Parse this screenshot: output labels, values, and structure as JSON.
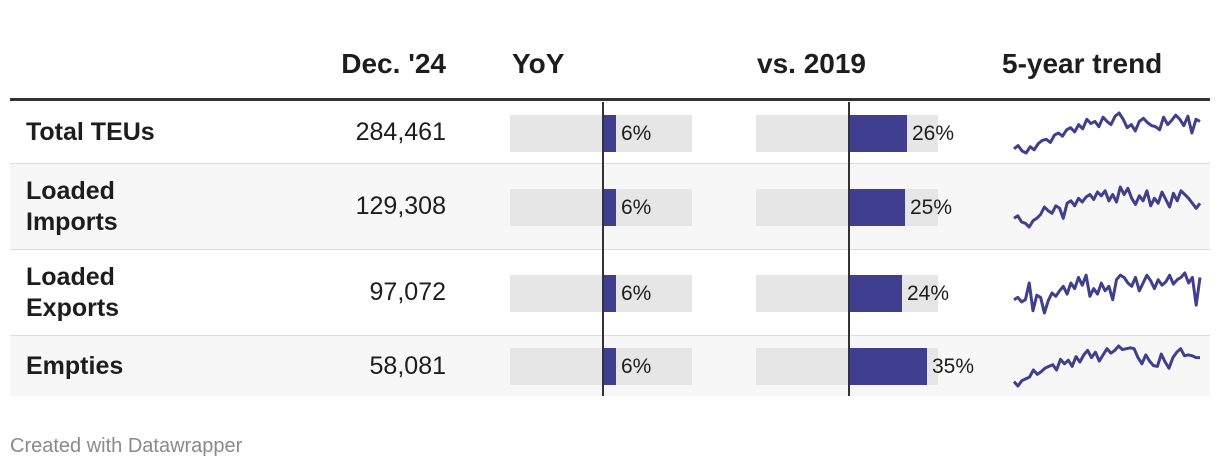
{
  "chart_data": {
    "type": "table",
    "columns": [
      "",
      "Dec. '24",
      "YoY",
      "vs. 2019",
      "5-year trend"
    ],
    "rows": [
      {
        "label": "Total TEUs",
        "value": "284,461",
        "yoy": 6,
        "yoy_label": "6%",
        "vs2019": 26,
        "vs2019_label": "26%",
        "trend": [
          32,
          35,
          30,
          28,
          34,
          31,
          37,
          40,
          41,
          38,
          45,
          47,
          44,
          50,
          52,
          48,
          55,
          51,
          60,
          56,
          58,
          53,
          62,
          58,
          55,
          63,
          66,
          60,
          52,
          55,
          49,
          58,
          61,
          57,
          54,
          53,
          50,
          62,
          55,
          59,
          64,
          60,
          54,
          63,
          47,
          60,
          58
        ]
      },
      {
        "label": "Loaded Imports",
        "value": "129,308",
        "yoy": 6,
        "yoy_label": "6%",
        "vs2019": 25,
        "vs2019_label": "25%",
        "trend": [
          36,
          38,
          33,
          32,
          29,
          34,
          36,
          39,
          45,
          42,
          40,
          46,
          44,
          36,
          48,
          50,
          46,
          52,
          49,
          53,
          55,
          51,
          57,
          54,
          58,
          50,
          55,
          49,
          61,
          55,
          60,
          52,
          47,
          54,
          50,
          58,
          46,
          52,
          48,
          57,
          51,
          45,
          56,
          50,
          58,
          55,
          52,
          48,
          44,
          48
        ]
      },
      {
        "label": "Loaded Exports",
        "value": "97,072",
        "yoy": 6,
        "yoy_label": "6%",
        "vs2019": 24,
        "vs2019_label": "24%",
        "trend": [
          40,
          42,
          38,
          40,
          55,
          30,
          44,
          42,
          28,
          39,
          46,
          43,
          48,
          52,
          45,
          55,
          50,
          60,
          53,
          62,
          43,
          50,
          45,
          55,
          48,
          52,
          40,
          58,
          62,
          60,
          55,
          52,
          60,
          48,
          55,
          62,
          57,
          50,
          58,
          53,
          56,
          62,
          54,
          58,
          60,
          64,
          55,
          60,
          35,
          60
        ]
      },
      {
        "label": "Empties",
        "value": "58,081",
        "yoy": 6,
        "yoy_label": "6%",
        "vs2019": 35,
        "vs2019_label": "35%",
        "trend": [
          25,
          20,
          26,
          28,
          30,
          38,
          33,
          36,
          40,
          42,
          44,
          38,
          50,
          45,
          49,
          42,
          53,
          47,
          55,
          60,
          52,
          58,
          48,
          55,
          62,
          57,
          60,
          65,
          61,
          62,
          63,
          62,
          52,
          45,
          55,
          48,
          43,
          42,
          56,
          47,
          40,
          52,
          58,
          62,
          54,
          55,
          54,
          52,
          52
        ]
      }
    ],
    "yoy_max": 40,
    "vs_max": 40
  },
  "footer": "Created with Datawrapper",
  "colors": {
    "bar": "#403f8f",
    "bar_bg": "#e6e6e6",
    "line": "#403f8f"
  }
}
